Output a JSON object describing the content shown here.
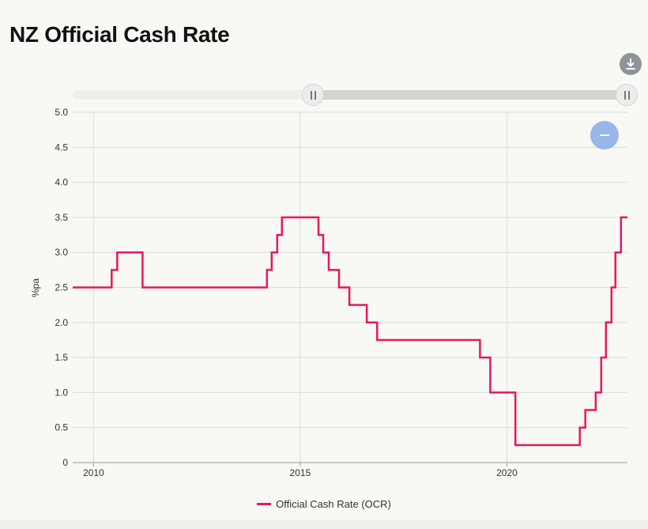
{
  "page": {
    "title": "NZ Official Cash Rate"
  },
  "controls": {
    "download_icon": "download-icon",
    "zoom_out_icon": "minus-icon"
  },
  "colors": {
    "series": "#e8175d",
    "grid": "#dcdcdc",
    "axis": "#999999"
  },
  "chart_data": {
    "type": "line",
    "step": true,
    "xlabel": "",
    "ylabel": "%pa",
    "xlim": [
      "2009-07-01",
      "2022-12-01"
    ],
    "ylim": [
      0,
      5
    ],
    "x_ticks": [
      "2010",
      "2015",
      "2020"
    ],
    "y_ticks": [
      "0",
      "0.5",
      "1.0",
      "1.5",
      "2.0",
      "2.5",
      "3.0",
      "3.5",
      "4.0",
      "4.5",
      "5.0"
    ],
    "grid": true,
    "legend": {
      "position": "bottom-center"
    },
    "series": [
      {
        "name": "Official Cash Rate (OCR)",
        "color": "#e8175d",
        "values": [
          {
            "x": "2009-07-01",
            "y": 2.5
          },
          {
            "x": "2010-06-10",
            "y": 2.75
          },
          {
            "x": "2010-07-29",
            "y": 3.0
          },
          {
            "x": "2011-03-10",
            "y": 2.5
          },
          {
            "x": "2014-03-13",
            "y": 2.75
          },
          {
            "x": "2014-04-24",
            "y": 3.0
          },
          {
            "x": "2014-06-12",
            "y": 3.25
          },
          {
            "x": "2014-07-24",
            "y": 3.5
          },
          {
            "x": "2015-06-11",
            "y": 3.25
          },
          {
            "x": "2015-07-23",
            "y": 3.0
          },
          {
            "x": "2015-09-10",
            "y": 2.75
          },
          {
            "x": "2015-12-10",
            "y": 2.5
          },
          {
            "x": "2016-03-10",
            "y": 2.25
          },
          {
            "x": "2016-08-11",
            "y": 2.0
          },
          {
            "x": "2016-11-10",
            "y": 1.75
          },
          {
            "x": "2019-05-08",
            "y": 1.5
          },
          {
            "x": "2019-08-07",
            "y": 1.0
          },
          {
            "x": "2020-03-16",
            "y": 0.25
          },
          {
            "x": "2021-10-06",
            "y": 0.5
          },
          {
            "x": "2021-11-24",
            "y": 0.75
          },
          {
            "x": "2022-02-23",
            "y": 1.0
          },
          {
            "x": "2022-04-13",
            "y": 1.5
          },
          {
            "x": "2022-05-25",
            "y": 2.0
          },
          {
            "x": "2022-07-13",
            "y": 2.5
          },
          {
            "x": "2022-08-17",
            "y": 3.0
          },
          {
            "x": "2022-10-05",
            "y": 3.5
          },
          {
            "x": "2022-12-01",
            "y": 3.5
          }
        ]
      }
    ]
  }
}
